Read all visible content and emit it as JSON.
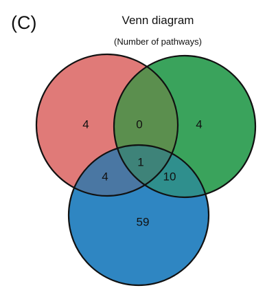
{
  "panel_label": "(C)",
  "title": "Venn diagram",
  "subtitle": "(Number of pathways)",
  "colors": {
    "set_a": "#e07a78",
    "set_b": "#3aa35c",
    "set_c": "#2f86c2",
    "outline": "#111111"
  },
  "regions": {
    "a_only": "4",
    "b_only": "4",
    "c_only": "59",
    "a_b": "0",
    "a_c": "4",
    "b_c": "10",
    "a_b_c": "1"
  }
}
